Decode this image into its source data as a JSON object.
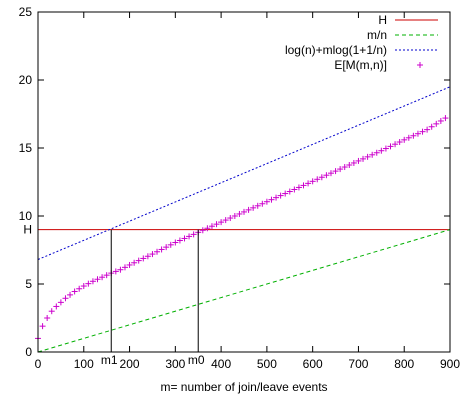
{
  "chart_data": {
    "type": "line",
    "xlabel": "m= number of join/leave events",
    "ylabel": "",
    "xlim": [
      0,
      900
    ],
    "ylim": [
      0,
      25
    ],
    "xticks": [
      0,
      100,
      200,
      300,
      400,
      500,
      600,
      700,
      800,
      900
    ],
    "yticks": [
      0,
      5,
      10,
      15,
      20,
      25
    ],
    "xtick_labels": [
      "0",
      "100",
      "200",
      "300",
      "400",
      "500",
      "600",
      "700",
      "800",
      "900"
    ],
    "ytick_labels": [
      "0",
      "5",
      "10",
      "15",
      "20",
      "25"
    ],
    "grid": false,
    "legend_position": "top-right",
    "series": [
      {
        "name": "H",
        "color": "#cc0000",
        "style": "solid",
        "x": [
          0,
          900
        ],
        "y": [
          9,
          9
        ]
      },
      {
        "name": "m/n",
        "color": "#00b000",
        "style": "dashed",
        "x": [
          0,
          900
        ],
        "y": [
          0,
          9
        ]
      },
      {
        "name": "log(n)+mlog(1+1/n)",
        "color": "#0000cc",
        "style": "dotted",
        "x": [
          0,
          900
        ],
        "y": [
          6.8,
          19.5
        ]
      },
      {
        "name": "E[M(m,n)]",
        "color": "#cc00cc",
        "style": "markers-plus",
        "x": [
          0,
          10,
          20,
          30,
          40,
          50,
          60,
          80,
          100,
          120,
          140,
          160,
          180,
          200,
          250,
          300,
          350,
          400,
          450,
          500,
          550,
          600,
          650,
          700,
          750,
          800,
          850,
          890
        ],
        "y": [
          1.0,
          1.9,
          2.5,
          3.0,
          3.35,
          3.65,
          3.95,
          4.45,
          4.85,
          5.2,
          5.5,
          5.8,
          6.05,
          6.4,
          7.2,
          8.05,
          8.8,
          9.55,
          10.3,
          11.05,
          11.8,
          12.55,
          13.3,
          14.05,
          14.8,
          15.6,
          16.35,
          17.2
        ]
      }
    ],
    "annotations": [
      {
        "label": "H",
        "x": 0,
        "y": 9,
        "kind": "y-marker"
      },
      {
        "label": "m1",
        "x": 160,
        "y": 0,
        "kind": "vertical-line",
        "to_y": 9
      },
      {
        "label": "m0",
        "x": 350,
        "y": 0,
        "kind": "vertical-line",
        "to_y": 9
      }
    ]
  }
}
